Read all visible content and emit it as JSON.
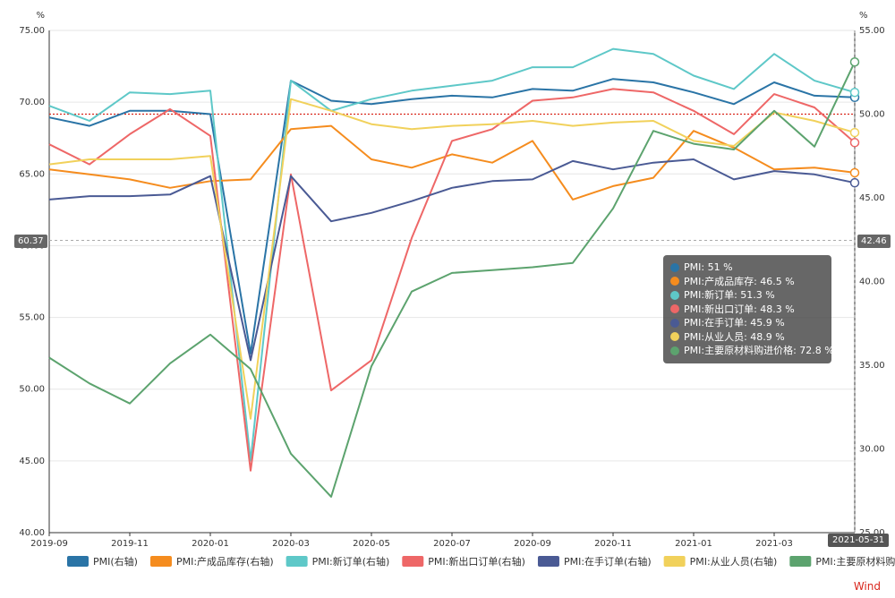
{
  "chart_data": {
    "type": "line",
    "left_axis": {
      "unit": "%",
      "ticks": [
        "75.00",
        "70.00",
        "65.00",
        "60.00",
        "55.00",
        "50.00",
        "45.00",
        "40.00"
      ],
      "ylim": [
        40,
        75
      ]
    },
    "right_axis": {
      "unit": "%",
      "ticks": [
        "55.00",
        "50.00",
        "45.00",
        "40.00",
        "35.00",
        "30.00",
        "25.00"
      ],
      "ylim": [
        25,
        55
      ]
    },
    "x": [
      "2019-09",
      "2019-10",
      "2019-11",
      "2019-12",
      "2020-01",
      "2020-02",
      "2020-03",
      "2020-04",
      "2020-05",
      "2020-06",
      "2020-07",
      "2020-08",
      "2020-09",
      "2020-10",
      "2020-11",
      "2020-12",
      "2021-01",
      "2021-02",
      "2021-03",
      "2021-04",
      "2021-05"
    ],
    "x_tick_labels": [
      "2019-09",
      "2019-11",
      "2020-01",
      "2020-03",
      "2020-05",
      "2020-07",
      "2020-09",
      "2020-11",
      "2021-01",
      "2021-03"
    ],
    "cursor_date": "2021-05-31",
    "cursor_left_value": "60.37",
    "cursor_right_value": "42.46",
    "reference_line_right": 50,
    "series": [
      {
        "name": "PMI(右轴)",
        "axis": "right",
        "color": "#2a74a6",
        "values": [
          49.8,
          49.3,
          50.2,
          50.2,
          50.0,
          35.7,
          52.0,
          50.8,
          50.6,
          50.9,
          51.1,
          51.0,
          51.5,
          51.4,
          52.1,
          51.9,
          51.3,
          50.6,
          51.9,
          51.1,
          51.0
        ]
      },
      {
        "name": "PMI:产成品库存(右轴)",
        "axis": "right",
        "color": "#f58c1e",
        "values": [
          46.7,
          46.4,
          46.1,
          45.6,
          46.0,
          46.1,
          49.1,
          49.3,
          47.3,
          46.8,
          47.6,
          47.1,
          48.4,
          44.9,
          45.7,
          46.2,
          49.0,
          48.0,
          46.7,
          46.8,
          46.5
        ]
      },
      {
        "name": "PMI:新订单(右轴)",
        "axis": "right",
        "color": "#5ec8c8",
        "values": [
          50.5,
          49.6,
          51.3,
          51.2,
          51.4,
          29.3,
          52.0,
          50.2,
          50.9,
          51.4,
          51.7,
          52.0,
          52.8,
          52.8,
          53.9,
          53.6,
          52.3,
          51.5,
          53.6,
          52.0,
          51.3
        ]
      },
      {
        "name": "PMI:新出口订单(右轴)",
        "axis": "right",
        "color": "#ee6767",
        "values": [
          48.2,
          47.0,
          48.8,
          50.3,
          48.7,
          28.7,
          46.4,
          33.5,
          35.3,
          42.6,
          48.4,
          49.1,
          50.8,
          51.0,
          51.5,
          51.3,
          50.2,
          48.8,
          51.2,
          50.4,
          48.3
        ]
      },
      {
        "name": "PMI:在手订单(右轴)",
        "axis": "right",
        "color": "#4a5a94",
        "values": [
          44.9,
          45.1,
          45.1,
          45.2,
          46.3,
          35.3,
          46.3,
          43.6,
          44.1,
          44.8,
          45.6,
          46.0,
          46.1,
          47.2,
          46.7,
          47.1,
          47.3,
          46.1,
          46.6,
          46.4,
          45.9
        ]
      },
      {
        "name": "PMI:从业人员(右轴)",
        "axis": "right",
        "color": "#f1d15b",
        "values": [
          47.0,
          47.3,
          47.3,
          47.3,
          47.5,
          31.8,
          50.9,
          50.2,
          49.4,
          49.1,
          49.3,
          49.4,
          49.6,
          49.3,
          49.5,
          49.6,
          48.4,
          48.1,
          50.1,
          49.6,
          48.9
        ]
      },
      {
        "name": "PMI:主要原材料购进价格",
        "axis": "left",
        "color": "#5ca36e",
        "values": [
          52.2,
          50.4,
          49.0,
          51.8,
          53.8,
          51.4,
          45.5,
          42.5,
          51.6,
          56.8,
          58.1,
          58.3,
          58.5,
          58.8,
          62.6,
          68.0,
          67.1,
          66.7,
          69.4,
          66.9,
          72.8
        ]
      }
    ]
  },
  "tooltip": {
    "rows": [
      {
        "text": "PMI: 51 %",
        "color": "#2a74a6"
      },
      {
        "text": "PMI:产成品库存: 46.5 %",
        "color": "#f58c1e"
      },
      {
        "text": "PMI:新订单: 51.3 %",
        "color": "#5ec8c8"
      },
      {
        "text": "PMI:新出口订单: 48.3 %",
        "color": "#ee6767"
      },
      {
        "text": "PMI:在手订单: 45.9 %",
        "color": "#4a5a94"
      },
      {
        "text": "PMI:从业人员: 48.9 %",
        "color": "#f1d15b"
      },
      {
        "text": "PMI:主要原材料购进价格: 72.8 %",
        "color": "#5ca36e"
      }
    ]
  },
  "brand": "Wind"
}
